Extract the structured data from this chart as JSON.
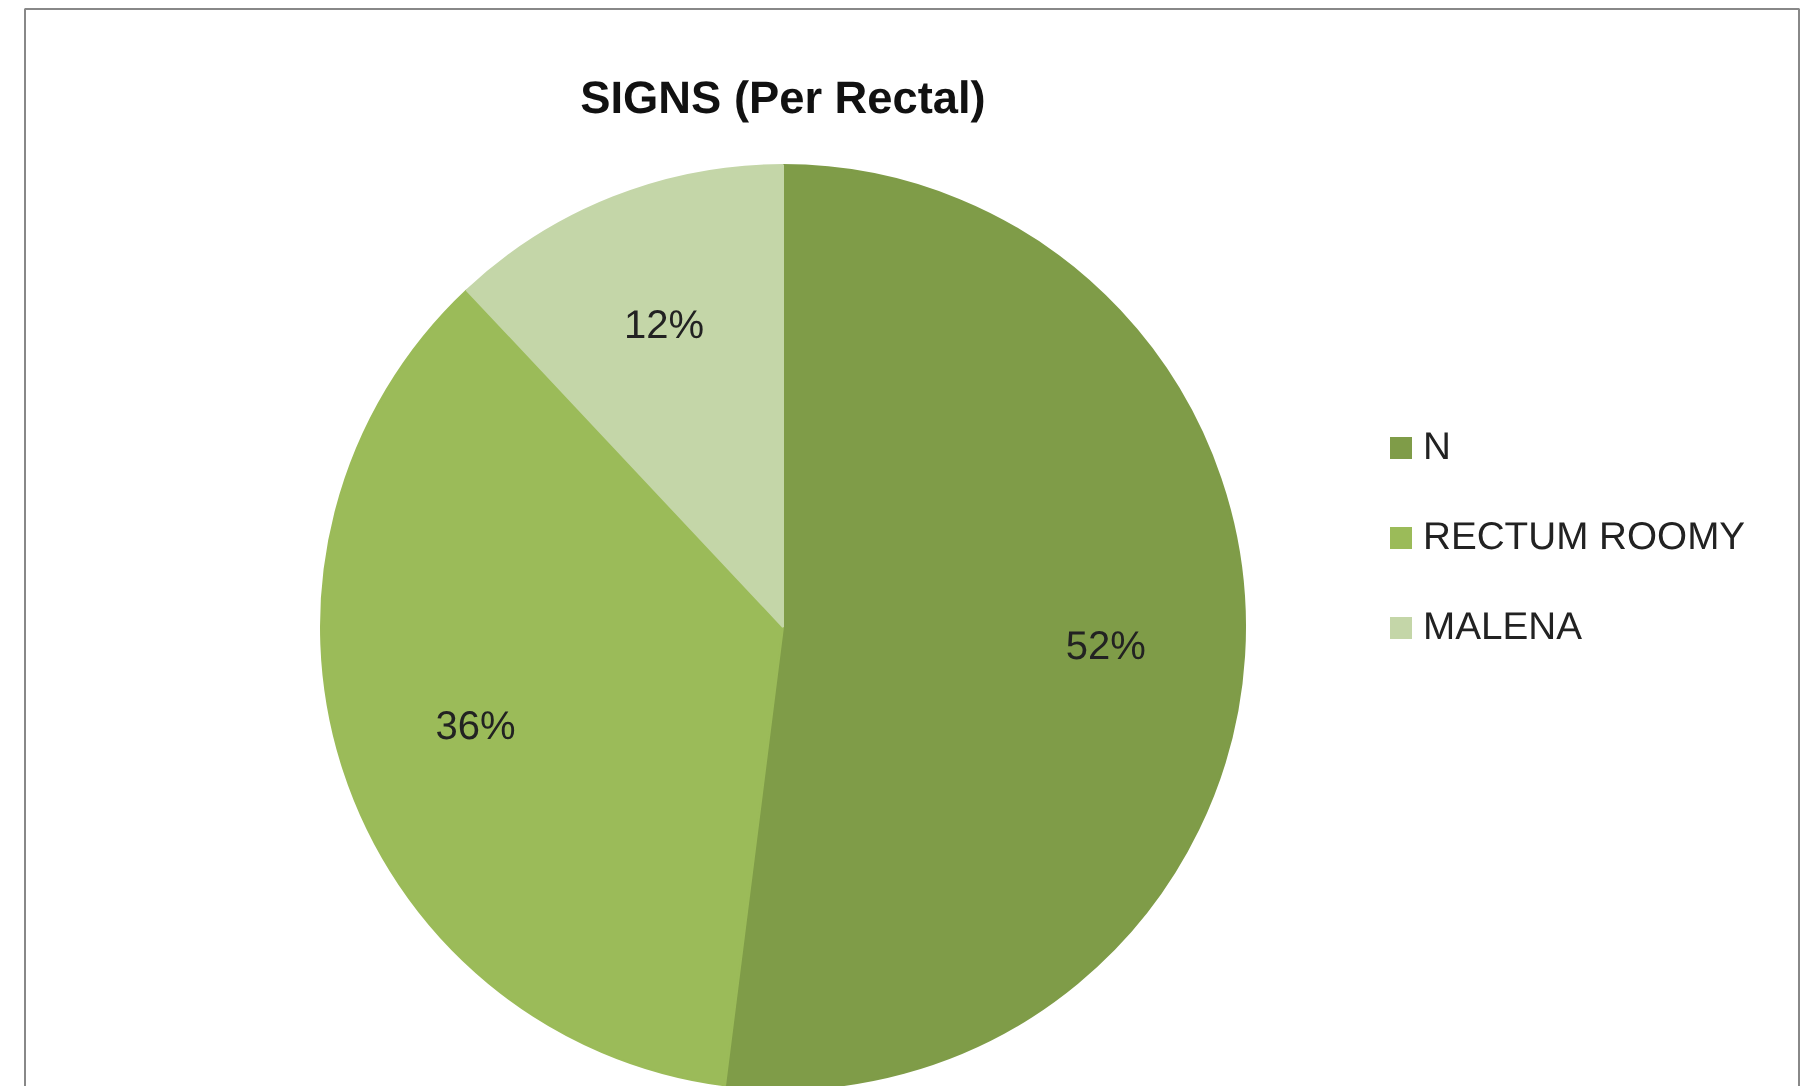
{
  "chart_data": {
    "type": "pie",
    "title": "SIGNS (Per Rectal)",
    "categories": [
      "N",
      "RECTUM ROOMY",
      "MALENA"
    ],
    "values": [
      52,
      36,
      12
    ],
    "colors": [
      "#7f9c48",
      "#9bbb59",
      "#c4d6a8"
    ],
    "value_labels": [
      "52%",
      "36%",
      "12%"
    ],
    "legend": "right"
  }
}
